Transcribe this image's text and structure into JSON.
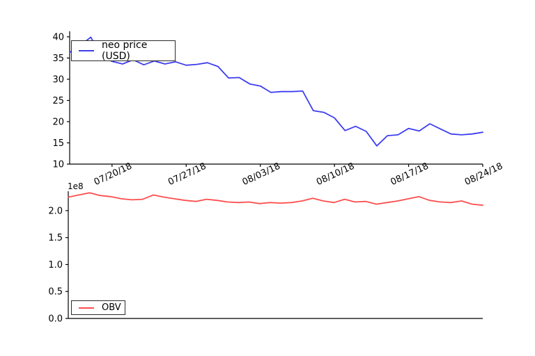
{
  "figure": {
    "background": "#ffffff",
    "axis_color": "#000000",
    "tick_label_color": "#000000"
  },
  "chart_data": [
    {
      "type": "line",
      "panel": "top",
      "legend_position": "upper left",
      "grid": false,
      "x": [
        "07/16/18",
        "07/17/18",
        "07/18/18",
        "07/19/18",
        "07/20/18",
        "07/21/18",
        "07/22/18",
        "07/23/18",
        "07/24/18",
        "07/25/18",
        "07/26/18",
        "07/27/18",
        "07/28/18",
        "07/29/18",
        "07/30/18",
        "07/31/18",
        "08/01/18",
        "08/02/18",
        "08/03/18",
        "08/04/18",
        "08/05/18",
        "08/06/18",
        "08/07/18",
        "08/08/18",
        "08/09/18",
        "08/10/18",
        "08/11/18",
        "08/12/18",
        "08/13/18",
        "08/14/18",
        "08/15/18",
        "08/16/18",
        "08/17/18",
        "08/18/18",
        "08/19/18",
        "08/20/18",
        "08/21/18",
        "08/22/18",
        "08/23/18",
        "08/24/18"
      ],
      "series": [
        {
          "name": "neo price (USD)",
          "color": "#3d3df0",
          "values": [
            36.3,
            38.0,
            39.9,
            35.4,
            34.2,
            33.6,
            34.6,
            33.4,
            34.3,
            33.6,
            34.1,
            33.3,
            33.5,
            33.9,
            33.0,
            30.3,
            30.4,
            28.9,
            28.4,
            26.9,
            27.1,
            27.1,
            27.2,
            22.6,
            22.2,
            20.9,
            17.9,
            18.9,
            17.7,
            14.3,
            16.7,
            16.9,
            18.4,
            17.8,
            19.5,
            18.3,
            17.1,
            16.9,
            17.1,
            17.5
          ]
        }
      ],
      "ylim": [
        10,
        41.3
      ],
      "yticks": [
        "40",
        "35",
        "30",
        "25",
        "20",
        "15",
        "10"
      ],
      "ytick_values": [
        40,
        35,
        30,
        25,
        20,
        15,
        10
      ],
      "xtick_labels": [
        "07/20/18",
        "07/27/18",
        "08/03/18",
        "08/10/18",
        "08/17/18",
        "08/24/18"
      ],
      "xtick_day_indices": [
        4,
        11,
        18,
        25,
        32,
        39
      ]
    },
    {
      "type": "line",
      "panel": "bottom",
      "legend_position": "lower left",
      "grid": false,
      "offset_label": "1e8",
      "x_shared_with": "top",
      "series": [
        {
          "name": "OBV",
          "color": "#ff4d4d",
          "values_unit": "1e8",
          "values": [
            2.25,
            2.29,
            2.33,
            2.28,
            2.26,
            2.22,
            2.2,
            2.21,
            2.29,
            2.25,
            2.22,
            2.19,
            2.17,
            2.21,
            2.19,
            2.16,
            2.15,
            2.16,
            2.13,
            2.15,
            2.14,
            2.15,
            2.18,
            2.23,
            2.18,
            2.15,
            2.21,
            2.16,
            2.17,
            2.12,
            2.15,
            2.18,
            2.22,
            2.26,
            2.19,
            2.16,
            2.15,
            2.18,
            2.12,
            2.1
          ]
        }
      ],
      "ylim": [
        0,
        2.36
      ],
      "yticks": [
        "2.0",
        "1.5",
        "1.0",
        "0.5",
        "0.0"
      ],
      "ytick_values": [
        2.0,
        1.5,
        1.0,
        0.5,
        0.0
      ],
      "xtick_labels": [],
      "xtick_day_indices": []
    }
  ]
}
